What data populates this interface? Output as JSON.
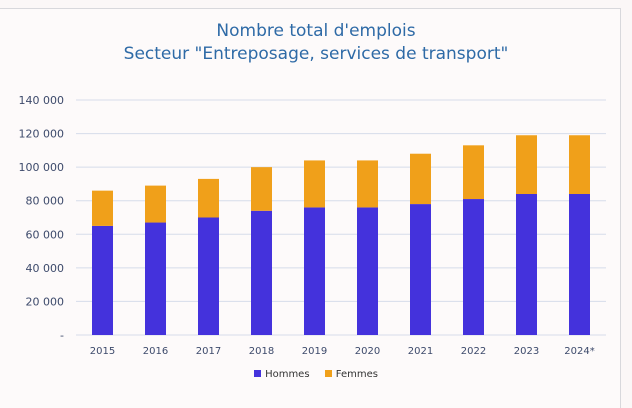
{
  "chart_data": {
    "type": "bar",
    "stacked": true,
    "title": "Nombre total d'emplois",
    "subtitle": "Secteur \"Entreposage, services de transport\"",
    "categories": [
      "2015",
      "2016",
      "2017",
      "2018",
      "2019",
      "2020",
      "2021",
      "2022",
      "2023",
      "2024*"
    ],
    "series": [
      {
        "name": "Hommes",
        "color": "#4432dc",
        "values": [
          65000,
          67000,
          70000,
          74000,
          76000,
          76000,
          78000,
          81000,
          84000,
          84000
        ]
      },
      {
        "name": "Femmes",
        "color": "#f0a01a",
        "values": [
          21000,
          22000,
          23000,
          26000,
          28000,
          28000,
          30000,
          32000,
          35000,
          35000
        ]
      }
    ],
    "y_ticks": [
      "-",
      "20 000",
      "40 000",
      "60 000",
      "80 000",
      "100 000",
      "120 000",
      "140 000"
    ],
    "ylim": [
      0,
      140000
    ],
    "grid": true,
    "legend_position": "bottom",
    "xlabel": "",
    "ylabel": ""
  }
}
